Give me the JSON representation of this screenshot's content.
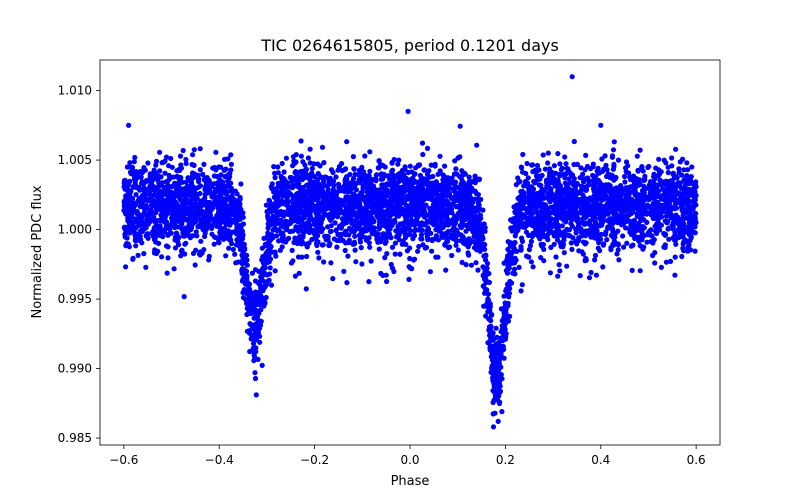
{
  "chart_data": {
    "type": "scatter",
    "title": "TIC 0264615805, period 0.1201 days",
    "xlabel": "Phase",
    "ylabel": "Normalized PDC flux",
    "xlim": [
      -0.65,
      0.65
    ],
    "ylim": [
      0.9845,
      1.0122
    ],
    "xticks": [
      -0.6,
      -0.4,
      -0.2,
      0.0,
      0.2,
      0.4,
      0.6
    ],
    "xtick_labels": [
      "−0.6",
      "−0.4",
      "−0.2",
      "0.0",
      "0.2",
      "0.4",
      "0.6"
    ],
    "yticks": [
      0.985,
      0.99,
      0.995,
      1.0,
      1.005,
      1.01
    ],
    "ytick_labels": [
      "0.985",
      "0.990",
      "0.995",
      "1.000",
      "1.005",
      "1.010"
    ],
    "grid": false,
    "marker_color": "#0000ff",
    "phase_range": [
      -0.6,
      0.6
    ],
    "baseline_flux": 1.0017,
    "scatter_sigma": 0.0015,
    "eclipses": [
      {
        "center": -0.325,
        "min_flux": 0.9935,
        "width": 0.045,
        "min_observed": 0.9897
      },
      {
        "center": 0.183,
        "min_flux": 0.9895,
        "width": 0.045,
        "min_observed": 0.9858
      }
    ],
    "outliers": [
      {
        "x": 0.34,
        "y": 1.011
      },
      {
        "x": -0.004,
        "y": 1.0085
      },
      {
        "x": -0.59,
        "y": 1.0075
      },
      {
        "x": 0.29,
        "y": 1.0055
      },
      {
        "x": 0.4,
        "y": 1.0075
      },
      {
        "x": -0.325,
        "y": 0.9897
      },
      {
        "x": 0.175,
        "y": 0.9858
      },
      {
        "x": 0.185,
        "y": 0.9862
      }
    ]
  }
}
